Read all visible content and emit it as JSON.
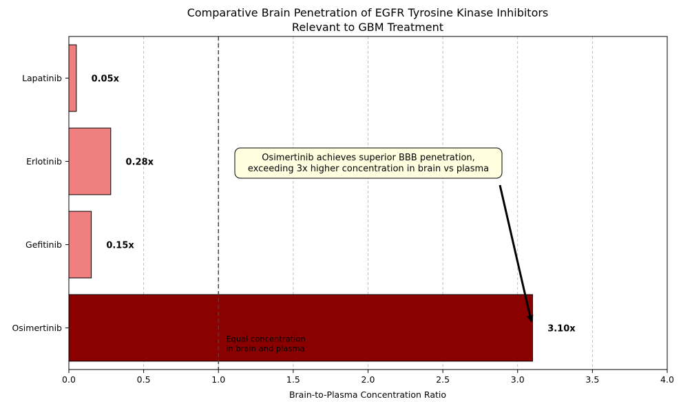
{
  "chart_data": {
    "type": "bar",
    "orientation": "horizontal",
    "title": "Comparative Brain Penetration of EGFR Tyrosine Kinase Inhibitors",
    "subtitle": "Relevant to GBM Treatment",
    "xlabel": "Brain-to-Plasma Concentration Ratio",
    "ylabel": "",
    "xlim": [
      0,
      4.0
    ],
    "x_ticks": [
      "0.0",
      "0.5",
      "1.0",
      "1.5",
      "2.0",
      "2.5",
      "3.0",
      "3.5",
      "4.0"
    ],
    "x_tick_values": [
      0,
      0.5,
      1.0,
      1.5,
      2.0,
      2.5,
      3.0,
      3.5,
      4.0
    ],
    "grid": "vertical-dashed",
    "categories": [
      "Osimertinib",
      "Gefitinib",
      "Erlotinib",
      "Lapatinib"
    ],
    "values": [
      3.1,
      0.15,
      0.28,
      0.05
    ],
    "data_labels": [
      "3.10x",
      "0.15x",
      "0.28x",
      "0.05x"
    ],
    "bar_colors": [
      "#8b0000",
      "#f08080",
      "#f08080",
      "#f08080"
    ],
    "edge_color": "#000000",
    "reference_line": {
      "x": 1.0,
      "style": "dashed",
      "label_line1": "Equal concentration",
      "label_line2": "in brain and plasma"
    },
    "annotation": {
      "line1": "Osimertinib achieves superior BBB penetration,",
      "line2": "exceeding 3x higher concentration in brain vs plasma",
      "target_category": "Osimertinib",
      "target_value": 3.1,
      "box_color": "#ffffe0"
    }
  }
}
